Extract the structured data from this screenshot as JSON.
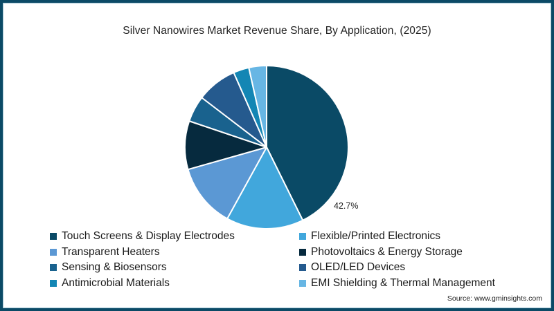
{
  "chart_data": {
    "type": "pie",
    "title": "Silver Nanowires Market Revenue Share, By Application, (2025)",
    "start_angle_deg": 0,
    "direction": "clockwise",
    "labels_shown": [
      {
        "category": "Touch Screens & Display Electrodes",
        "text": "42.7%"
      }
    ],
    "legend_position": "bottom",
    "slices": [
      {
        "label": "Touch Screens & Display Electrodes",
        "value": 42.7,
        "color": "#0a4a66"
      },
      {
        "label": "Flexible/Printed Electronics",
        "value": 15.3,
        "color": "#41a7dc"
      },
      {
        "label": "Transparent Heaters",
        "value": 12.6,
        "color": "#5b98d4"
      },
      {
        "label": "Photovoltaics & Energy Storage",
        "value": 9.6,
        "color": "#062a3e"
      },
      {
        "label": "Sensing & Biosensors",
        "value": 5.2,
        "color": "#19628e"
      },
      {
        "label": "OLED/LED Devices",
        "value": 8.0,
        "color": "#255a8e"
      },
      {
        "label": "Antimicrobial Materials",
        "value": 3.1,
        "color": "#1386b4"
      },
      {
        "label": "EMI Shielding & Thermal Management",
        "value": 3.5,
        "color": "#67b6e4"
      }
    ]
  },
  "header": {
    "title": "Silver Nanowires Market Revenue Share, By Application, (2025)"
  },
  "pie": {
    "highlight_label": "42.7%"
  },
  "legend": {
    "items": [
      {
        "label": "Touch Screens & Display Electrodes",
        "color": "#0a4a66"
      },
      {
        "label": "Flexible/Printed Electronics",
        "color": "#41a7dc"
      },
      {
        "label": "Transparent Heaters",
        "color": "#5b98d4"
      },
      {
        "label": "Photovoltaics & Energy Storage",
        "color": "#062a3e"
      },
      {
        "label": "Sensing & Biosensors",
        "color": "#19628e"
      },
      {
        "label": "OLED/LED Devices",
        "color": "#255a8e"
      },
      {
        "label": "Antimicrobial Materials",
        "color": "#1386b4"
      },
      {
        "label": "EMI Shielding & Thermal Management",
        "color": "#67b6e4"
      }
    ]
  },
  "footer": {
    "source": "Source: www.gminsights.com"
  },
  "colors": {
    "frame_border": "#0b4a66",
    "background": "#ffffff"
  }
}
